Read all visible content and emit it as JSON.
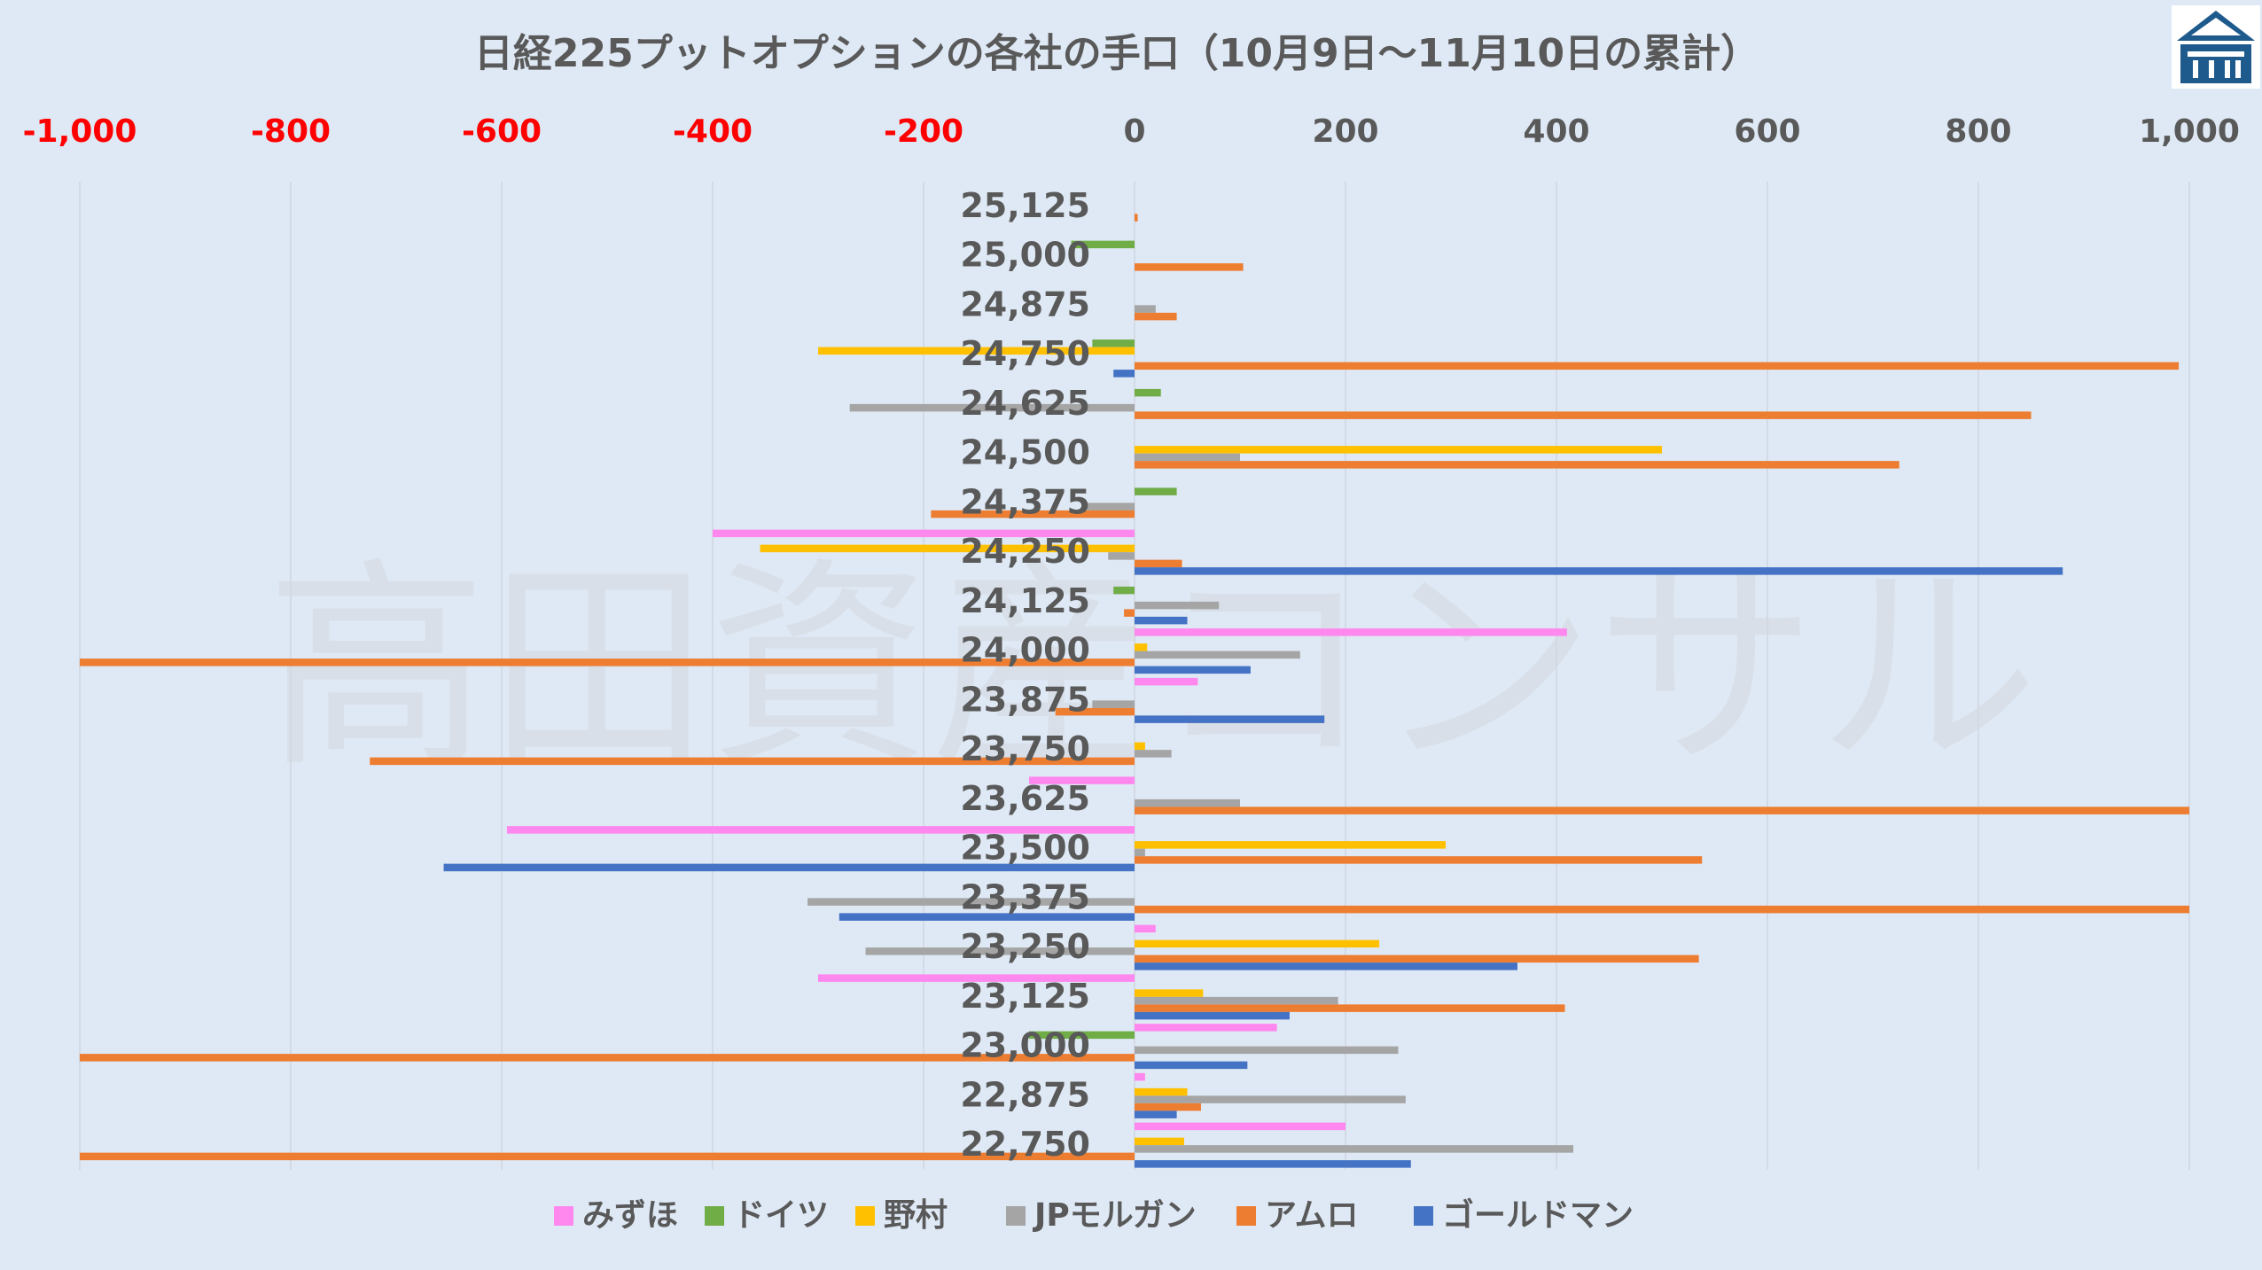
{
  "chart_data": {
    "type": "bar",
    "orientation": "horizontal",
    "title": "日経225プットオプションの各社の手口（10月9日〜11月10日の累計）",
    "x_ticks": [
      "-1,000",
      "-800",
      "-600",
      "-400",
      "-200",
      "0",
      "200",
      "400",
      "600",
      "800",
      "1,000"
    ],
    "xlim": [
      -1000,
      1000
    ],
    "grid": true,
    "legend_position": "bottom",
    "categories": [
      "25,125",
      "25,000",
      "24,875",
      "24,750",
      "24,625",
      "24,500",
      "24,375",
      "24,250",
      "24,125",
      "24,000",
      "23,875",
      "23,750",
      "23,625",
      "23,500",
      "23,375",
      "23,250",
      "23,125",
      "23,000",
      "22,875",
      "22,750"
    ],
    "series": [
      {
        "name": "みずほ",
        "color": "#ff88ee",
        "values": [
          0,
          0,
          0,
          0,
          0,
          0,
          0,
          -400,
          0,
          410,
          60,
          0,
          -100,
          -595,
          0,
          20,
          -300,
          135,
          10,
          200
        ]
      },
      {
        "name": "ドイツ",
        "color": "#70ad47",
        "values": [
          0,
          -60,
          0,
          -40,
          25,
          0,
          40,
          0,
          -20,
          0,
          0,
          0,
          0,
          0,
          0,
          0,
          0,
          -100,
          0,
          0
        ]
      },
      {
        "name": "野村",
        "color": "#ffc000",
        "values": [
          0,
          0,
          0,
          -300,
          0,
          500,
          0,
          -355,
          0,
          12,
          0,
          10,
          0,
          295,
          0,
          232,
          65,
          0,
          50,
          47
        ]
      },
      {
        "name": "JPモルガン",
        "color": "#a5a5a5",
        "values": [
          0,
          0,
          20,
          0,
          -270,
          100,
          -45,
          -25,
          80,
          157,
          -40,
          35,
          100,
          10,
          -310,
          -255,
          193,
          250,
          257,
          416
        ]
      },
      {
        "name": "アムロ",
        "color": "#ed7d31",
        "values": [
          3,
          103,
          40,
          990,
          850,
          725,
          -193,
          45,
          -10,
          -1000,
          -75,
          -725,
          1000,
          538,
          1000,
          535,
          408,
          -1000,
          63,
          -1000
        ]
      },
      {
        "name": "ゴールドマン",
        "color": "#4472c4",
        "values": [
          0,
          0,
          0,
          -20,
          0,
          0,
          0,
          880,
          50,
          110,
          180,
          0,
          0,
          -655,
          -280,
          363,
          147,
          107,
          40,
          262
        ]
      }
    ]
  },
  "watermark": {
    "text": "高田資産コンサル"
  },
  "logo": {
    "icon": "building-logo-icon"
  }
}
